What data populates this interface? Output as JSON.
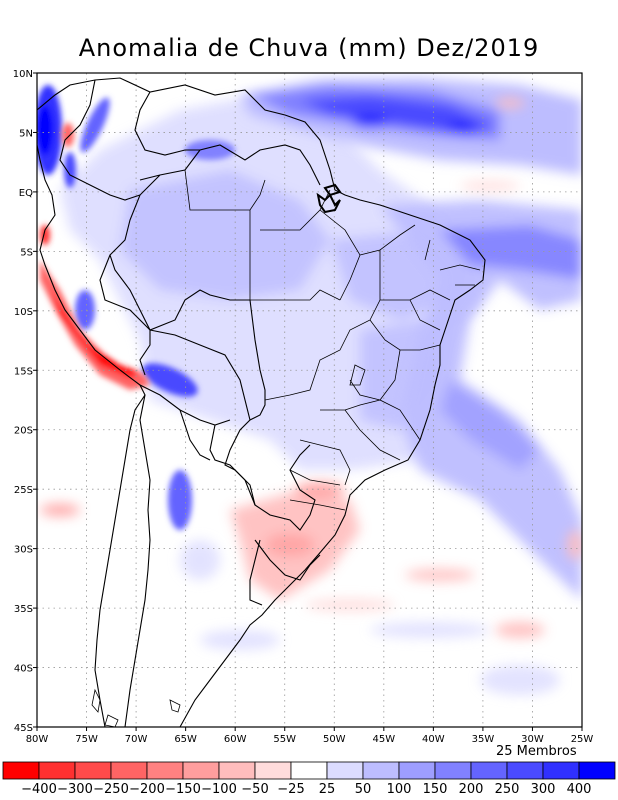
{
  "title": "Anomalia de Chuva (mm) Dez/2019",
  "members_label": "25 Membros",
  "map": {
    "lon_range": [
      -80,
      -25
    ],
    "lat_range": [
      -45,
      10
    ],
    "x_ticks": [
      "80W",
      "75W",
      "70W",
      "65W",
      "60W",
      "55W",
      "50W",
      "45W",
      "40W",
      "35W",
      "30W",
      "25W"
    ],
    "y_ticks": [
      "10N",
      "5N",
      "EQ",
      "5S",
      "10S",
      "15S",
      "20S",
      "25S",
      "30S",
      "35S",
      "40S",
      "45S"
    ],
    "grid": "dotted"
  },
  "colorbar": {
    "colors": [
      "#ff0000",
      "#ff3030",
      "#ff4a4a",
      "#ff6464",
      "#ff8181",
      "#ff9e9e",
      "#ffbdbd",
      "#ffdcdc",
      "#ffffff",
      "#dcdcff",
      "#bdbdff",
      "#9e9eff",
      "#8181ff",
      "#6464ff",
      "#4a4aff",
      "#3030ff",
      "#0000ff"
    ],
    "labels": [
      "-400",
      "-300",
      "-250",
      "-200",
      "-150",
      "-100",
      "-50",
      "-25",
      "25",
      "50",
      "100",
      "150",
      "200",
      "250",
      "300",
      "400"
    ]
  },
  "anomaly_features": [
    {
      "name": "itcz-atlantic-wet",
      "sign": "positive",
      "lon": -44,
      "lat": 5,
      "level": 350
    },
    {
      "name": "ne-brazil-wet",
      "sign": "positive",
      "lon": -38,
      "lat": -5,
      "level": 150
    },
    {
      "name": "sacz-wet",
      "sign": "positive",
      "lon": -35,
      "lat": -22,
      "level": 150
    },
    {
      "name": "colombia-coast-wet",
      "sign": "positive",
      "lon": -79,
      "lat": 4,
      "level": 400
    },
    {
      "name": "peru-coast-dry",
      "sign": "negative",
      "lon": -76,
      "lat": -11,
      "level": -400
    },
    {
      "name": "southern-brazil-dry",
      "sign": "negative",
      "lon": -52,
      "lat": -29,
      "level": -50
    },
    {
      "name": "bolivia-andes-wet",
      "sign": "positive",
      "lon": -66,
      "lat": -16,
      "level": 250
    }
  ]
}
